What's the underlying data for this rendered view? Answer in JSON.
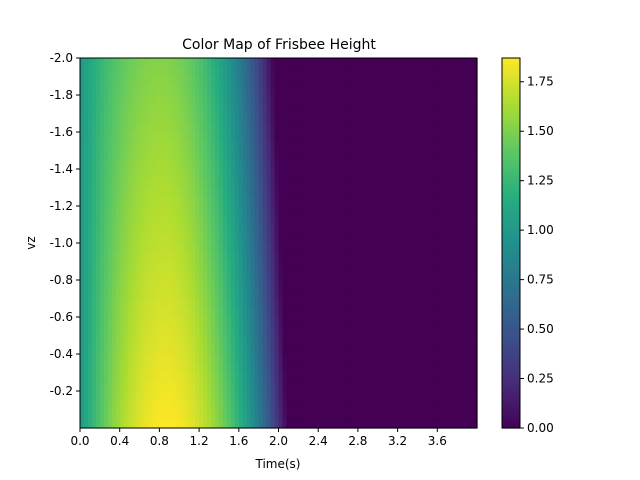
{
  "chart_data": {
    "type": "heatmap",
    "title": "Color Map of Frisbee Height",
    "xlabel": "Time(s)",
    "ylabel": "vz",
    "xlim": [
      0.0,
      4.0
    ],
    "ylim": [
      -2.0,
      0.0
    ],
    "y_axis_inverted": true,
    "x_ticks": [
      0.0,
      0.4,
      0.8,
      1.2,
      1.6,
      2.0,
      2.4,
      2.8,
      3.2,
      3.6
    ],
    "x_tick_labels": [
      "0.0",
      "0.4",
      "0.8",
      "1.2",
      "1.6",
      "2.0",
      "2.4",
      "2.8",
      "3.2",
      "3.6"
    ],
    "y_ticks": [
      -2.0,
      -1.8,
      -1.6,
      -1.4,
      -1.2,
      -1.0,
      -0.8,
      -0.6,
      -0.4,
      -0.2
    ],
    "y_tick_labels": [
      "-2.0",
      "-1.8",
      "-1.6",
      "-1.4",
      "-1.2",
      "-1.0",
      "-0.8",
      "-0.6",
      "-0.4",
      "-0.2"
    ],
    "colormap": "viridis",
    "colorbar": {
      "range": [
        0.0,
        1.87
      ],
      "ticks": [
        0.0,
        0.25,
        0.5,
        0.75,
        1.0,
        1.25,
        1.5,
        1.75
      ],
      "tick_labels": [
        "0.00",
        "0.25",
        "0.50",
        "0.75",
        "1.00",
        "1.25",
        "1.50",
        "1.75"
      ]
    },
    "height_model": {
      "initial_height": 1.0,
      "peak_height_at_vz0": 1.87,
      "peak_time_at_vz0": 0.88,
      "peak_height_at_vz_minus2": 1.52,
      "peak_time_at_vz_minus2": 0.8,
      "landing_time_at_vz0": 2.09,
      "landing_time_at_vz_minus2": 1.95
    },
    "grid": false
  }
}
